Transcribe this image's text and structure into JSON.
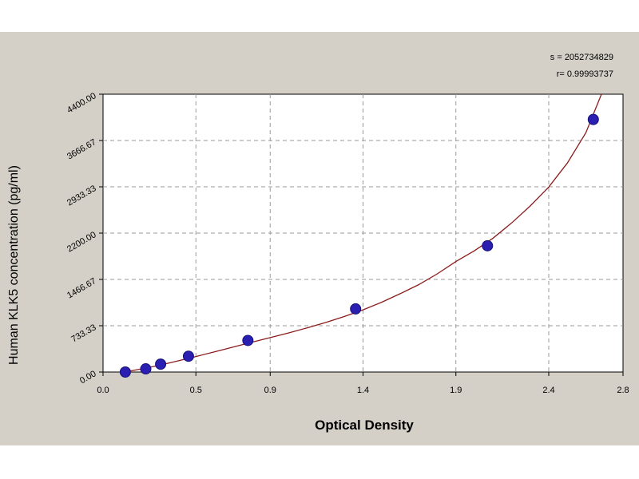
{
  "chart_data": {
    "type": "scatter",
    "xlabel": "Optical Density",
    "ylabel": "Human  KLK5 concentration (pg/ml)",
    "xlim": [
      0.0,
      2.8
    ],
    "ylim": [
      0.0,
      4400.0
    ],
    "x_ticks": [
      0.0,
      0.5,
      0.9,
      1.4,
      1.9,
      2.4,
      2.8
    ],
    "x_tick_labels": [
      "0.0",
      "0.5",
      "0.9",
      "1.4",
      "1.9",
      "2.4",
      "2.8"
    ],
    "y_ticks": [
      0,
      733.33,
      1466.67,
      2200.0,
      2933.33,
      3666.67,
      4400.0
    ],
    "y_tick_labels": [
      "0.00",
      "733.33",
      "1466.67",
      "2200.00",
      "2933.33",
      "3666.67",
      "4400.00"
    ],
    "grid": true,
    "annotations": [
      "s = 2052734829",
      "r= 0.99993737"
    ],
    "series": [
      {
        "kind": "points",
        "x": [
          0.12,
          0.23,
          0.31,
          0.46,
          0.78,
          1.36,
          2.07,
          2.64
        ],
        "y": [
          0,
          50,
          125,
          250,
          500,
          1000,
          2000,
          4000
        ],
        "color": "#2a1fb0"
      },
      {
        "kind": "fitted-curve",
        "x": [
          0.1,
          0.2,
          0.3,
          0.4,
          0.5,
          0.6,
          0.7,
          0.8,
          0.9,
          1.0,
          1.1,
          1.2,
          1.3,
          1.4,
          1.5,
          1.6,
          1.7,
          1.8,
          1.9,
          2.0,
          2.1,
          2.2,
          2.3,
          2.4,
          2.5,
          2.6,
          2.7
        ],
        "y": [
          -10,
          45,
          105,
          175,
          245,
          320,
          395,
          470,
          545,
          620,
          700,
          785,
          880,
          985,
          1105,
          1240,
          1385,
          1555,
          1750,
          1920,
          2120,
          2360,
          2630,
          2930,
          3310,
          3790,
          4520
        ],
        "color": "#8b1c1c"
      }
    ],
    "colors": {
      "panel_background": "#d4d0c8",
      "plot_background": "#ffffff",
      "grid": "#9a9a9a",
      "point_fill": "#2a1fb0",
      "curve": "#8b1c1c"
    }
  }
}
